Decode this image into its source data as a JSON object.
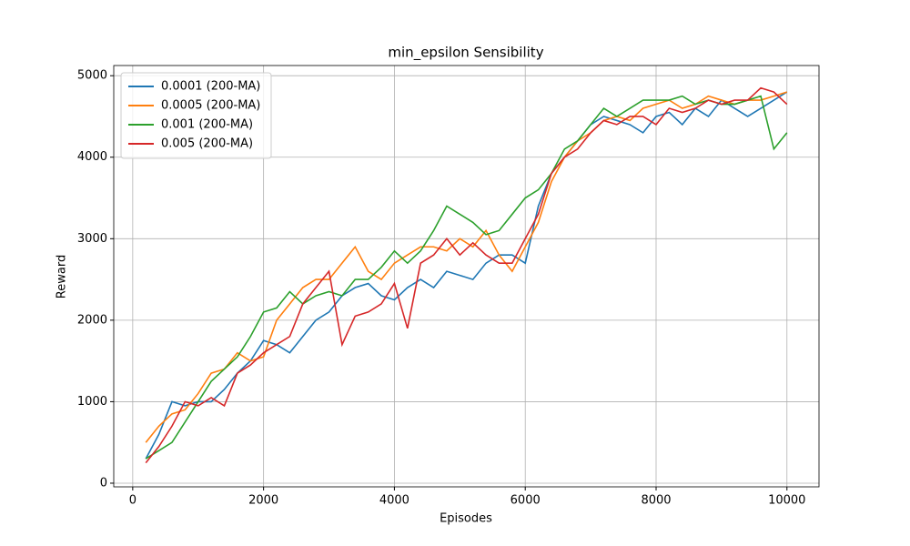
{
  "chart_data": {
    "type": "line",
    "title": "min_epsilon Sensibility",
    "x_label": "Episodes",
    "y_label": "Reward",
    "x": [
      200,
      400,
      600,
      800,
      1000,
      1200,
      1400,
      1600,
      1800,
      2000,
      2200,
      2400,
      2600,
      2800,
      3000,
      3200,
      3400,
      3600,
      3800,
      4000,
      4200,
      4400,
      4600,
      4800,
      5000,
      5200,
      5400,
      5600,
      5800,
      6000,
      6200,
      6400,
      6600,
      6800,
      7000,
      7200,
      7400,
      7600,
      7800,
      8000,
      8200,
      8400,
      8600,
      8800,
      9000,
      9200,
      9400,
      9600,
      9800,
      10000
    ],
    "series": [
      {
        "name": "0.0001 (200-MA)",
        "color": "#1f77b4",
        "values": [
          300,
          600,
          1000,
          950,
          1000,
          1000,
          1150,
          1350,
          1500,
          1750,
          1700,
          1600,
          1800,
          2000,
          2100,
          2300,
          2400,
          2450,
          2300,
          2250,
          2400,
          2500,
          2400,
          2600,
          2550,
          2500,
          2700,
          2800,
          2800,
          2700,
          3400,
          3800,
          4000,
          4200,
          4400,
          4500,
          4450,
          4400,
          4300,
          4500,
          4550,
          4400,
          4600,
          4500,
          4700,
          4600,
          4500,
          4600,
          4700,
          4800
        ]
      },
      {
        "name": "0.0005 (200-MA)",
        "color": "#ff7f0e",
        "values": [
          500,
          700,
          850,
          900,
          1100,
          1350,
          1400,
          1600,
          1500,
          1550,
          2000,
          2200,
          2400,
          2500,
          2500,
          2700,
          2900,
          2600,
          2500,
          2700,
          2800,
          2900,
          2900,
          2850,
          3000,
          2900,
          3100,
          2800,
          2600,
          2900,
          3200,
          3700,
          4000,
          4200,
          4300,
          4450,
          4500,
          4450,
          4600,
          4650,
          4700,
          4600,
          4650,
          4750,
          4700,
          4650,
          4700,
          4700,
          4750,
          4800
        ]
      },
      {
        "name": "0.001 (200-MA)",
        "color": "#2ca02c",
        "values": [
          300,
          400,
          500,
          750,
          1000,
          1250,
          1400,
          1550,
          1800,
          2100,
          2150,
          2350,
          2200,
          2300,
          2350,
          2300,
          2500,
          2500,
          2650,
          2850,
          2700,
          2850,
          3100,
          3400,
          3300,
          3200,
          3050,
          3100,
          3300,
          3500,
          3600,
          3800,
          4100,
          4200,
          4400,
          4600,
          4500,
          4600,
          4700,
          4700,
          4700,
          4750,
          4650,
          4700,
          4650,
          4650,
          4700,
          4750,
          4100,
          4300
        ]
      },
      {
        "name": "0.005 (200-MA)",
        "color": "#d62728",
        "values": [
          250,
          450,
          700,
          1000,
          950,
          1050,
          950,
          1350,
          1450,
          1600,
          1700,
          1800,
          2200,
          2400,
          2600,
          1700,
          2050,
          2100,
          2200,
          2450,
          1900,
          2700,
          2800,
          3000,
          2800,
          2950,
          2800,
          2700,
          2700,
          3000,
          3300,
          3800,
          4000,
          4100,
          4300,
          4450,
          4400,
          4500,
          4500,
          4400,
          4600,
          4550,
          4600,
          4700,
          4650,
          4700,
          4700,
          4850,
          4800,
          4650
        ]
      }
    ],
    "xlim": [
      -290,
      10490
    ],
    "ylim": [
      -45,
      5125
    ],
    "xticks": [
      0,
      2000,
      4000,
      6000,
      8000,
      10000
    ],
    "yticks": [
      0,
      1000,
      2000,
      3000,
      4000,
      5000
    ],
    "grid": true,
    "legend": "upper left"
  }
}
